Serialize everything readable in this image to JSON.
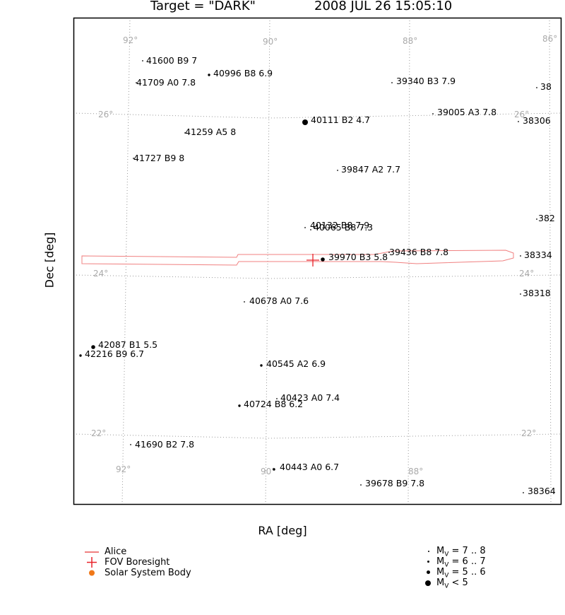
{
  "title": {
    "target": "Target = \"DARK\"",
    "datetime": "2008 JUL 26 15:05:10"
  },
  "chart_data": {
    "type": "scatter",
    "xlabel": "RA [deg]",
    "ylabel": "Dec [deg]",
    "grid": true,
    "ra_grid_labels": [
      "92°",
      "90°",
      "88°",
      "86°"
    ],
    "dec_grid_labels": [
      "26°",
      "24°",
      "22°"
    ],
    "stars": [
      {
        "label": "41600 B9 7",
        "mag": 7.0
      },
      {
        "label": "41709 A0 7.8",
        "mag": 7.8
      },
      {
        "label": "40996 B8 6.9",
        "mag": 6.9
      },
      {
        "label": "39340 B3 7.9",
        "mag": 7.9
      },
      {
        "label": "38",
        "mag": 7.5
      },
      {
        "label": "40111 B2 4.7",
        "mag": 4.7
      },
      {
        "label": "39005 A3 7.8",
        "mag": 7.8
      },
      {
        "label": "38306",
        "mag": 7.5
      },
      {
        "label": "41259 A5 8",
        "mag": 8.0
      },
      {
        "label": "41727 B9 8",
        "mag": 8.0
      },
      {
        "label": "39847 A2 7.7",
        "mag": 7.7
      },
      {
        "label": "382",
        "mag": 7.5
      },
      {
        "label": "40132 B8 7.9",
        "mag": 7.9
      },
      {
        "label": "40065 B8 7.3",
        "mag": 7.3
      },
      {
        "label": "39970 B3 5.8",
        "mag": 5.8
      },
      {
        "label": "39436 B8 7.8",
        "mag": 7.8
      },
      {
        "label": "38334",
        "mag": 7.5
      },
      {
        "label": "40678 A0 7.6",
        "mag": 7.6
      },
      {
        "label": "38318",
        "mag": 7.5
      },
      {
        "label": "42087 B1 5.5",
        "mag": 5.5
      },
      {
        "label": "42216 B9 6.7",
        "mag": 6.7
      },
      {
        "label": "40545 A2 6.9",
        "mag": 6.9
      },
      {
        "label": "40423 A0 7.4",
        "mag": 7.4
      },
      {
        "label": "40724 B8 6.2",
        "mag": 6.2
      },
      {
        "label": "41690 B2 7.8",
        "mag": 7.8
      },
      {
        "label": "40443 A0 6.7",
        "mag": 6.7
      },
      {
        "label": "39678 B9 7.8",
        "mag": 7.8
      },
      {
        "label": "38364",
        "mag": 7.5
      }
    ]
  },
  "legend": {
    "items": [
      {
        "label": "Alice",
        "color": "#f08080",
        "symbol": "line"
      },
      {
        "label": "FOV Boresight",
        "color": "#e8232a",
        "symbol": "cross"
      },
      {
        "label": "Solar System Body",
        "color": "#f07818",
        "symbol": "dot"
      }
    ],
    "magnitudes": [
      {
        "sub": "V",
        "range": "= 7 .. 8"
      },
      {
        "sub": "V",
        "range": "= 6 .. 7"
      },
      {
        "sub": "V",
        "range": "= 5 .. 6"
      },
      {
        "sub": "V",
        "range": "< 5"
      }
    ],
    "mag_prefix": "M"
  }
}
